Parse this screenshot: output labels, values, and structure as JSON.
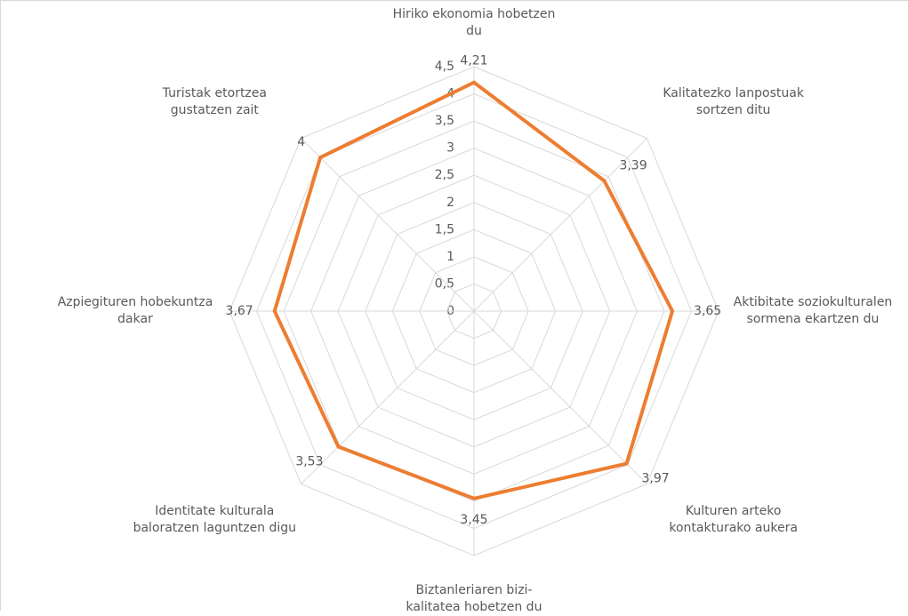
{
  "chart_data": {
    "type": "radar",
    "categories": [
      "Hiriko ekonomia hobetzen du",
      "Kalitatezko lanpostuak sortzen ditu",
      "Aktibitate soziokulturalen sormena ekartzen du",
      "Kulturen arteko kontakturako aukera",
      "Biztanleriaren bizi-kalitatea hobetzen du",
      "Identitate kulturala baloratzen laguntzen digu",
      "Azpiegituren hobekuntza dakar",
      "Turistak etortzea gustatzen zait"
    ],
    "values": [
      4.21,
      3.39,
      3.65,
      3.97,
      3.45,
      3.53,
      3.67,
      4
    ],
    "value_labels": [
      "4,21",
      "3,39",
      "3,65",
      "3,97",
      "3,45",
      "3,53",
      "3,67",
      "4"
    ],
    "color": "#ed7d31",
    "rlim": [
      0,
      4.5
    ],
    "rticks": [
      0,
      {
        "value": 0.5,
        "label": "0,5"
      },
      1,
      {
        "value": 1.5,
        "label": "1,5"
      },
      2,
      {
        "value": 2.5,
        "label": "2,5"
      },
      3,
      {
        "value": 3.5,
        "label": "3,5"
      },
      4,
      {
        "value": 4.5,
        "label": "4,5"
      }
    ],
    "grid": true
  }
}
